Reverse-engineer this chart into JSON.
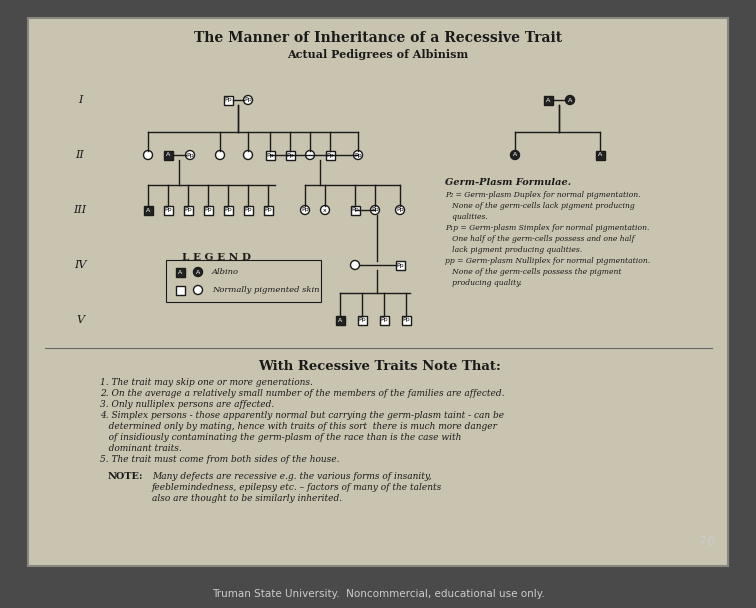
{
  "title_line1": "The Manner of Inheritance of a Recessive Trait",
  "title_line2": "Actual Pedigrees of Albinism",
  "bg_outer": "#4a4a4a",
  "bg_board": "#c8c4b0",
  "text_color": "#1a1a1a",
  "footer_text": "Truman State University.  Noncommercial, educational use only.",
  "page_number": "76",
  "section_header": "With Recessive Traits Note That:",
  "germ_plasm_title": "Germ-Plasm Formulae.",
  "legend_title": "L E G E N D",
  "legend_albino_label": "Albino",
  "legend_normal_label": "Normally pigmented skin",
  "roman_numerals": [
    "I",
    "II",
    "III",
    "IV",
    "V"
  ]
}
